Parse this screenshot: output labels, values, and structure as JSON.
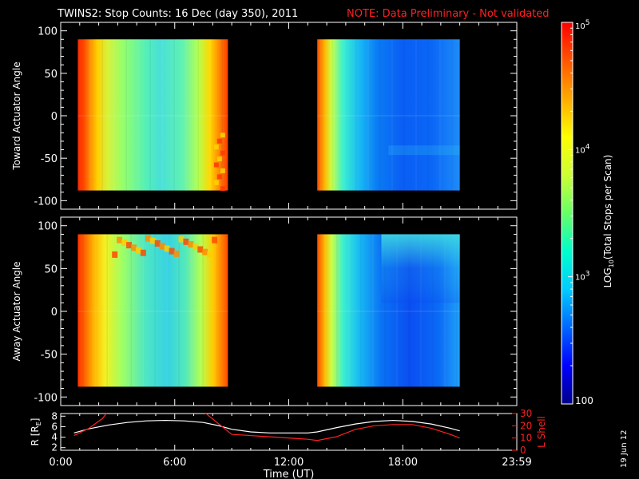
{
  "header": {
    "title": "TWINS2: Stop Counts: 16 Dec (day 350), 2011",
    "note": "NOTE: Data Preliminary - Not validated",
    "note_color": "#ff2020"
  },
  "footer": {
    "date_stamp": "19 Jun 12"
  },
  "chart_data": [
    {
      "type": "heatmap",
      "panel": "toward",
      "ylabel": "Toward Actuator Angle",
      "ylim": [
        -110,
        110
      ],
      "yticks": [
        100,
        50,
        0,
        -50,
        -100
      ],
      "ytick_labels": [
        "100",
        "50",
        "0",
        "-50",
        "-100"
      ],
      "xlim_hours": [
        0,
        24
      ],
      "data_intervals_hours": [
        [
          0.9,
          8.8
        ],
        [
          13.5,
          21.0
        ]
      ],
      "angle_range": [
        -88,
        90
      ]
    },
    {
      "type": "heatmap",
      "panel": "away",
      "ylabel": "Away Actuator Angle",
      "ylim": [
        -110,
        110
      ],
      "yticks": [
        100,
        50,
        0,
        -50,
        -100
      ],
      "ytick_labels": [
        "100",
        "50",
        "0",
        "-50",
        "-100"
      ],
      "xlim_hours": [
        0,
        24
      ],
      "data_intervals_hours": [
        [
          0.9,
          8.8
        ],
        [
          13.5,
          21.0
        ]
      ],
      "angle_range": [
        -88,
        90
      ]
    },
    {
      "type": "line",
      "panel": "ephemeris",
      "xlabel": "Time (UT)",
      "xlim_hours": [
        0,
        24
      ],
      "xticks_hours": [
        0,
        6,
        12,
        18,
        24
      ],
      "xtick_labels": [
        "0:00",
        "6:00",
        "12:00",
        "18:00",
        "23:59"
      ],
      "left_axis": {
        "label": "R [R",
        "label_sub": "E",
        "label_end": "]",
        "ylim": [
          1.5,
          8.5
        ],
        "yticks": [
          2,
          4,
          6,
          8
        ],
        "ytick_labels": [
          "2",
          "4",
          "6",
          "8"
        ]
      },
      "right_axis": {
        "label": "L Shell",
        "ylim": [
          0,
          30
        ],
        "yticks": [
          0,
          10,
          20,
          30
        ],
        "ytick_labels": [
          "0",
          "10",
          "20",
          "30"
        ],
        "color": "#ff2020"
      },
      "series": [
        {
          "axis": "left",
          "color": "#ffffff",
          "x": [
            0.7,
            1.5,
            2.5,
            3.5,
            4.5,
            5.5,
            6.5,
            7.5,
            8.3,
            9.0,
            10.0,
            11.0,
            12.0,
            13.0,
            13.5,
            14.5,
            15.5,
            16.5,
            17.5,
            18.5,
            19.5,
            20.5,
            21.0
          ],
          "y": [
            4.8,
            5.6,
            6.3,
            6.8,
            7.1,
            7.2,
            7.1,
            6.8,
            6.2,
            5.5,
            5.0,
            4.8,
            4.8,
            4.8,
            5.0,
            5.8,
            6.5,
            7.0,
            7.2,
            7.0,
            6.5,
            5.7,
            5.2
          ]
        },
        {
          "axis": "right",
          "color": "#ff2020",
          "x": [
            0.7,
            1.5,
            2.2,
            2.5,
            7.5,
            7.8,
            9.0,
            11.0,
            13.0,
            13.5,
            14.5,
            15.5,
            16.5,
            17.5,
            18.5,
            19.5,
            20.5,
            21.0
          ],
          "y": [
            12,
            18,
            26,
            32,
            32,
            28,
            13,
            11,
            9,
            8,
            11,
            17,
            20,
            21,
            21,
            18,
            13,
            10
          ]
        }
      ]
    },
    {
      "type": "colorbar",
      "label_main": "LOG",
      "label_sub": "10",
      "label_rest": "(Total Stops per Scan)",
      "scale": "log",
      "range": [
        100,
        100000
      ],
      "ticks": [
        {
          "value": 100,
          "label": "100"
        },
        {
          "value": 1000,
          "label": "10",
          "sup": "3"
        },
        {
          "value": 10000,
          "label": "10",
          "sup": "4"
        },
        {
          "value": 100000,
          "label": "10",
          "sup": "5"
        }
      ],
      "colormap": [
        "#000088",
        "#0000ff",
        "#0066ff",
        "#00ccff",
        "#00ffcc",
        "#66ff66",
        "#ccff33",
        "#ffff00",
        "#ffaa00",
        "#ff5500",
        "#ff0000"
      ]
    }
  ]
}
